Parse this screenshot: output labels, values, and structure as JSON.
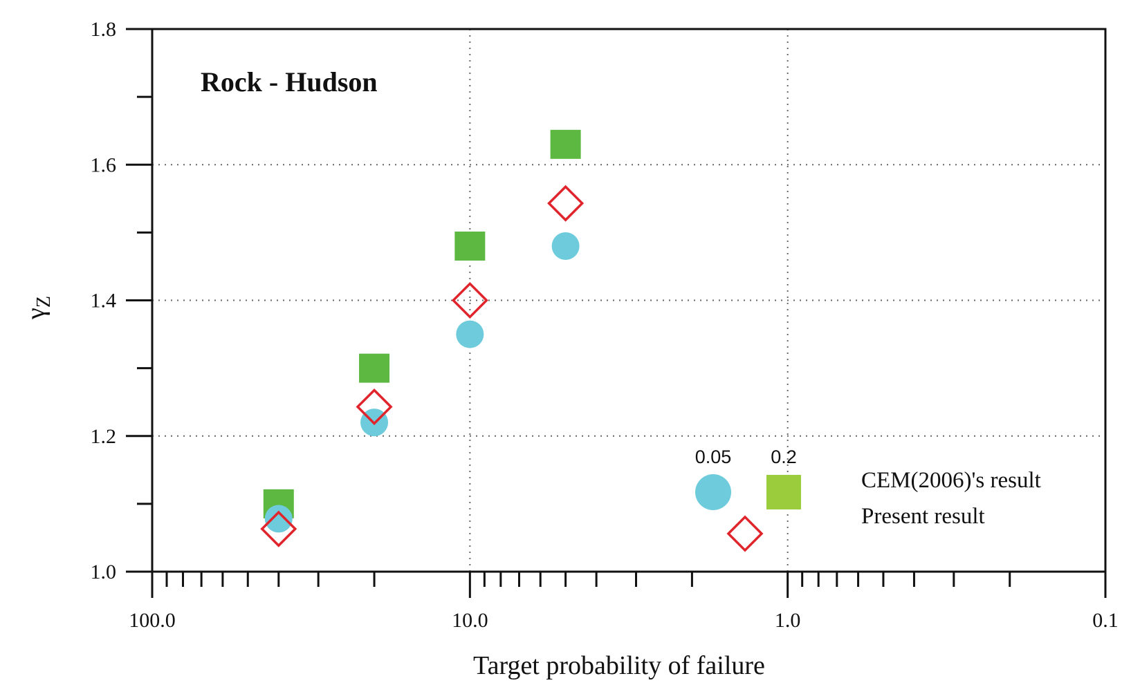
{
  "chart_data": {
    "type": "scatter",
    "title": "Rock - Hudson",
    "xlabel": "Target probability of failure",
    "ylabel": "γ",
    "ylabel_sub": "Z",
    "xscale": "log",
    "x_reversed": true,
    "xlim": [
      100.0,
      0.1
    ],
    "ylim": [
      1.0,
      1.8
    ],
    "grid": true,
    "x_ticks": [
      "100.0",
      "10.0",
      "1.0",
      "0.1"
    ],
    "y_ticks": [
      "1.0",
      "1.2",
      "1.4",
      "1.6",
      "1.8"
    ],
    "series": [
      {
        "marker": "square",
        "color": "#5cb840",
        "x": [
          40,
          20,
          10,
          5
        ],
        "y": [
          1.1,
          1.3,
          1.48,
          1.63
        ]
      },
      {
        "marker": "diamond",
        "color": "#e0242b",
        "x": [
          40,
          20,
          10,
          5
        ],
        "y": [
          1.063,
          1.243,
          1.4,
          1.543
        ]
      },
      {
        "marker": "circle",
        "color": "#6ecbdc",
        "x": [
          40,
          20,
          10,
          5
        ],
        "y": [
          1.078,
          1.22,
          1.35,
          1.48
        ]
      }
    ],
    "legend": {
      "placement": "bottom-right",
      "sig_labels": [
        "0.05",
        "0.2"
      ],
      "entries": [
        "CEM(2006)'s result",
        "Present result"
      ]
    }
  }
}
